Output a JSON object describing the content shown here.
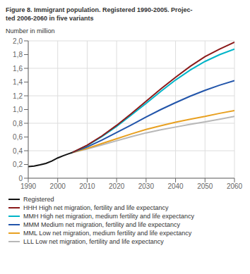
{
  "chart_data": {
    "type": "line",
    "title": "Figure 8. Immigrant population. Registered 1990-2005. Projec-\nted 2006-2060 in five variants",
    "y_label": "Number in million",
    "xlim": [
      1990,
      2060
    ],
    "xticks": [
      1990,
      2000,
      2010,
      2020,
      2030,
      2040,
      2050,
      2060
    ],
    "ylim": [
      0,
      2.0
    ],
    "yticks": [
      0,
      {
        "value": 0.2,
        "label": "0,2"
      },
      {
        "value": 0.4,
        "label": "0,4"
      },
      {
        "value": 0.6,
        "label": "0,6"
      },
      {
        "value": 0.8,
        "label": "0,8"
      },
      {
        "value": 1.0,
        "label": "1,0"
      },
      {
        "value": 1.2,
        "label": "1,2"
      },
      {
        "value": 1.4,
        "label": "1,4"
      },
      {
        "value": 1.6,
        "label": "1,6"
      },
      {
        "value": 1.8,
        "label": "1,8"
      },
      {
        "value": 2.0,
        "label": "2,0"
      }
    ],
    "grid": true,
    "legend": "bottom",
    "series": [
      {
        "name": "Registered",
        "color": "#111111",
        "x": [
          1990,
          1992,
          1994,
          1996,
          1998,
          2000,
          2002,
          2004,
          2005
        ],
        "values": [
          0.17,
          0.178,
          0.195,
          0.215,
          0.25,
          0.295,
          0.33,
          0.36,
          0.375
        ]
      },
      {
        "name": "HHH High net migration, fertility and life expectancy",
        "color": "#8b1a1a",
        "x": [
          2005,
          2010,
          2015,
          2020,
          2025,
          2030,
          2035,
          2040,
          2045,
          2050,
          2055,
          2060
        ],
        "values": [
          0.375,
          0.48,
          0.615,
          0.77,
          0.94,
          1.12,
          1.3,
          1.47,
          1.63,
          1.77,
          1.88,
          1.98
        ]
      },
      {
        "name": "MMH High net migration, medium fertility and life expectancy",
        "color": "#00b4c8",
        "x": [
          2005,
          2010,
          2015,
          2020,
          2025,
          2030,
          2035,
          2040,
          2045,
          2050,
          2055,
          2060
        ],
        "values": [
          0.375,
          0.475,
          0.605,
          0.755,
          0.92,
          1.09,
          1.265,
          1.43,
          1.575,
          1.7,
          1.8,
          1.88
        ]
      },
      {
        "name": "MMM Medium net migration, fertility and life expectancy",
        "color": "#2255aa",
        "x": [
          2005,
          2010,
          2015,
          2020,
          2025,
          2030,
          2035,
          2040,
          2045,
          2050,
          2055,
          2060
        ],
        "values": [
          0.375,
          0.455,
          0.555,
          0.665,
          0.775,
          0.89,
          1.0,
          1.1,
          1.195,
          1.28,
          1.355,
          1.42
        ]
      },
      {
        "name": "MML Low net migration, medium fertility and life expectancy",
        "color": "#e8a020",
        "x": [
          2005,
          2010,
          2015,
          2020,
          2025,
          2030,
          2035,
          2040,
          2045,
          2050,
          2055,
          2060
        ],
        "values": [
          0.375,
          0.435,
          0.505,
          0.575,
          0.645,
          0.71,
          0.765,
          0.815,
          0.86,
          0.9,
          0.945,
          0.985
        ]
      },
      {
        "name": "LLL Low net migration, fertility and life expectancy",
        "color": "#b8b8b8",
        "x": [
          2005,
          2010,
          2015,
          2020,
          2025,
          2030,
          2035,
          2040,
          2045,
          2050,
          2055,
          2060
        ],
        "values": [
          0.375,
          0.425,
          0.485,
          0.545,
          0.605,
          0.66,
          0.705,
          0.745,
          0.785,
          0.82,
          0.86,
          0.9
        ]
      }
    ]
  }
}
